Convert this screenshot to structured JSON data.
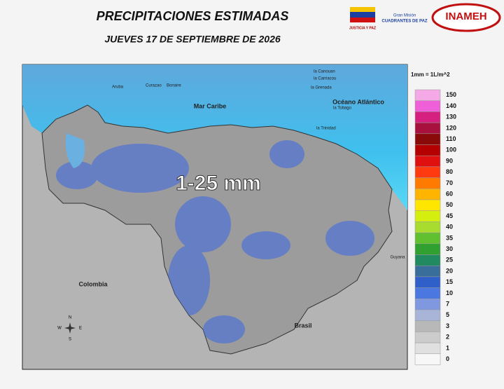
{
  "header": {
    "title": "PRECIPITACIONES  ESTIMADAS",
    "subtitle": "JUEVES 17 DE SEPTIEMBRE DE 2026"
  },
  "logos": {
    "left": "JUSTICIA Y PAZ",
    "middle_top": "Gran Misión",
    "middle": "CUADRANTES DE PAZ",
    "right": "INAMEH"
  },
  "map": {
    "sea": "Mar Caribe",
    "ocean": "Océano Atlántico",
    "west": "Colombia",
    "south": "Brasil",
    "east": "Guyana",
    "islands": [
      "Aruba",
      "Curazao",
      "Bonaire",
      "la Canouan",
      "la Carriacou",
      "la Grenada",
      "la Tobago",
      "la Trinidad"
    ],
    "range": "1-25 mm",
    "compass": [
      "N",
      "S",
      "E",
      "W"
    ]
  },
  "legend": {
    "unit": "1mm = 1L/m^2",
    "entries": [
      {
        "value": 150,
        "color": "#f5a9e6"
      },
      {
        "value": 140,
        "color": "#ee5fd8"
      },
      {
        "value": 130,
        "color": "#d6207f"
      },
      {
        "value": 120,
        "color": "#a8103e"
      },
      {
        "value": 110,
        "color": "#8a0a0a"
      },
      {
        "value": 100,
        "color": "#b40000"
      },
      {
        "value": 90,
        "color": "#e01010"
      },
      {
        "value": 80,
        "color": "#ff3a10"
      },
      {
        "value": 70,
        "color": "#ff7a00"
      },
      {
        "value": 60,
        "color": "#ffb400"
      },
      {
        "value": 50,
        "color": "#ffe600"
      },
      {
        "value": 45,
        "color": "#d4ee10"
      },
      {
        "value": 40,
        "color": "#a8dd30"
      },
      {
        "value": 35,
        "color": "#60c030"
      },
      {
        "value": 30,
        "color": "#30a030"
      },
      {
        "value": 25,
        "color": "#228a60"
      },
      {
        "value": 20,
        "color": "#3a6e9a"
      },
      {
        "value": 15,
        "color": "#2f5fc8"
      },
      {
        "value": 10,
        "color": "#4a78e0"
      },
      {
        "value": 7,
        "color": "#7f98e0"
      },
      {
        "value": 5,
        "color": "#a8b4d8"
      },
      {
        "value": 3,
        "color": "#b8b8b8"
      },
      {
        "value": 2,
        "color": "#cccccc"
      },
      {
        "value": 1,
        "color": "#e0e0e0"
      },
      {
        "value": 0,
        "color": "#f7f7f7"
      }
    ]
  }
}
